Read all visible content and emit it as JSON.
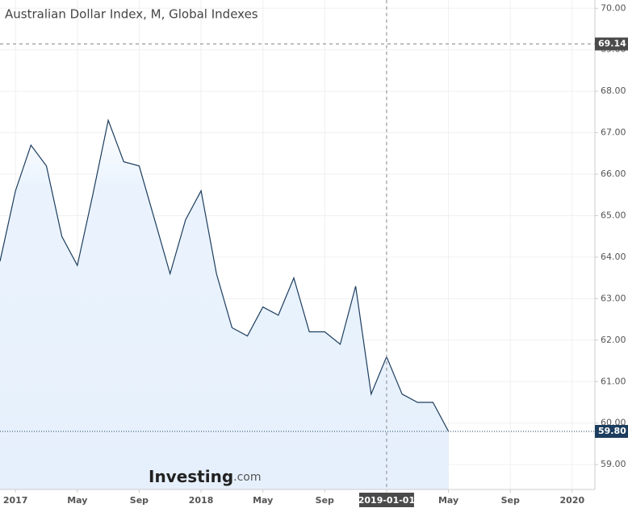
{
  "chart_data": {
    "type": "area",
    "title": "Australian Dollar Index, M, Global Indexes",
    "watermark": {
      "brand": "Investing",
      "suffix": ".com"
    },
    "x": [
      "2016-12",
      "2017-01",
      "2017-02",
      "2017-03",
      "2017-04",
      "2017-05",
      "2017-06",
      "2017-07",
      "2017-08",
      "2017-09",
      "2017-10",
      "2017-11",
      "2017-12",
      "2018-01",
      "2018-02",
      "2018-03",
      "2018-04",
      "2018-05",
      "2018-06",
      "2018-07",
      "2018-08",
      "2018-09",
      "2018-10",
      "2018-11",
      "2018-12",
      "2019-01",
      "2019-02",
      "2019-03",
      "2019-04",
      "2019-05"
    ],
    "values": [
      63.9,
      65.6,
      66.7,
      66.2,
      64.5,
      63.8,
      65.5,
      67.3,
      66.3,
      66.2,
      64.9,
      63.6,
      64.9,
      65.6,
      63.6,
      62.3,
      62.1,
      62.8,
      62.6,
      63.5,
      62.2,
      62.2,
      61.9,
      63.3,
      60.7,
      61.6,
      60.7,
      60.5,
      60.5,
      59.8
    ],
    "last_label": "59.80",
    "color": "#1c3d5e",
    "fill": "#e3effc",
    "xlim": [
      "2016-12",
      "2020-02"
    ],
    "xticks": [
      {
        "value": "2017-01",
        "label": "2017"
      },
      {
        "value": "2017-05",
        "label": "May"
      },
      {
        "value": "2017-09",
        "label": "Sep"
      },
      {
        "value": "2018-01",
        "label": "2018"
      },
      {
        "value": "2018-05",
        "label": "May"
      },
      {
        "value": "2018-09",
        "label": "Sep"
      },
      {
        "value": "2019-01",
        "label": "2019-01-01"
      },
      {
        "value": "2019-05",
        "label": "May"
      },
      {
        "value": "2019-09",
        "label": "Sep"
      },
      {
        "value": "2020-01",
        "label": "2020"
      }
    ],
    "ylim": [
      58.4,
      70.2
    ],
    "yticks": [
      {
        "value": 59,
        "label": "59.00"
      },
      {
        "value": 60,
        "label": "60.00"
      },
      {
        "value": 61,
        "label": "61.00"
      },
      {
        "value": 62,
        "label": "62.00"
      },
      {
        "value": 63,
        "label": "63.00"
      },
      {
        "value": 64,
        "label": "64.00"
      },
      {
        "value": 65,
        "label": "65.00"
      },
      {
        "value": 66,
        "label": "66.00"
      },
      {
        "value": 67,
        "label": "67.00"
      },
      {
        "value": 68,
        "label": "68.00"
      },
      {
        "value": 69,
        "label": "69.00"
      },
      {
        "value": 70,
        "label": "70.00"
      }
    ],
    "crosshair": {
      "x": "2019-01",
      "y": 69.14
    },
    "grid": true
  }
}
